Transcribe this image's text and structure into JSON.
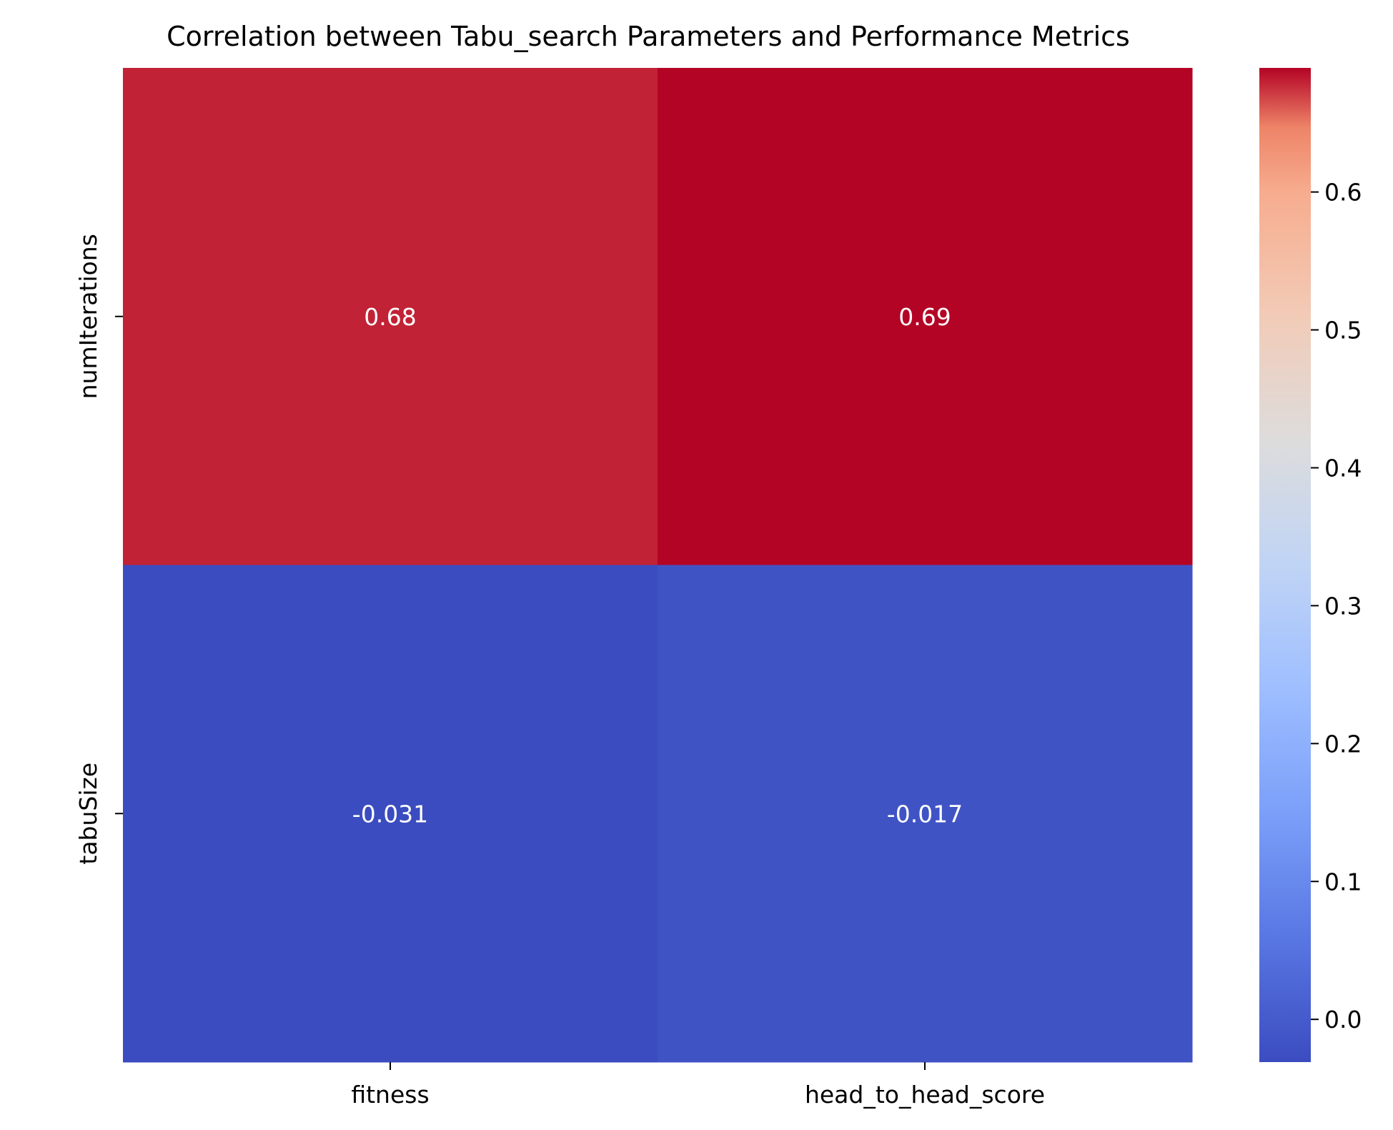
{
  "chart_data": {
    "type": "heatmap",
    "title": "Correlation between Tabu_search Parameters and Performance Metrics",
    "xlabel": "",
    "ylabel": "",
    "x_categories": [
      "fitness",
      "head_to_head_score"
    ],
    "y_categories": [
      "numIterations",
      "tabuSize"
    ],
    "values": [
      [
        0.68,
        0.69
      ],
      [
        -0.031,
        -0.017
      ]
    ],
    "annotations": [
      [
        "0.68",
        "0.69"
      ],
      [
        "-0.031",
        "-0.017"
      ]
    ],
    "colormap": "coolwarm",
    "colorbar": {
      "vmin": -0.031,
      "vmax": 0.69,
      "ticks": [
        0.0,
        0.1,
        0.2,
        0.3,
        0.4,
        0.5,
        0.6
      ],
      "tick_labels": [
        "0.0",
        "0.1",
        "0.2",
        "0.3",
        "0.4",
        "0.5",
        "0.6"
      ]
    },
    "colors": {
      "low": "#3b4cc0",
      "mid": "#dddddd",
      "high": "#b40426",
      "annotation_text": "#ffffff"
    }
  }
}
